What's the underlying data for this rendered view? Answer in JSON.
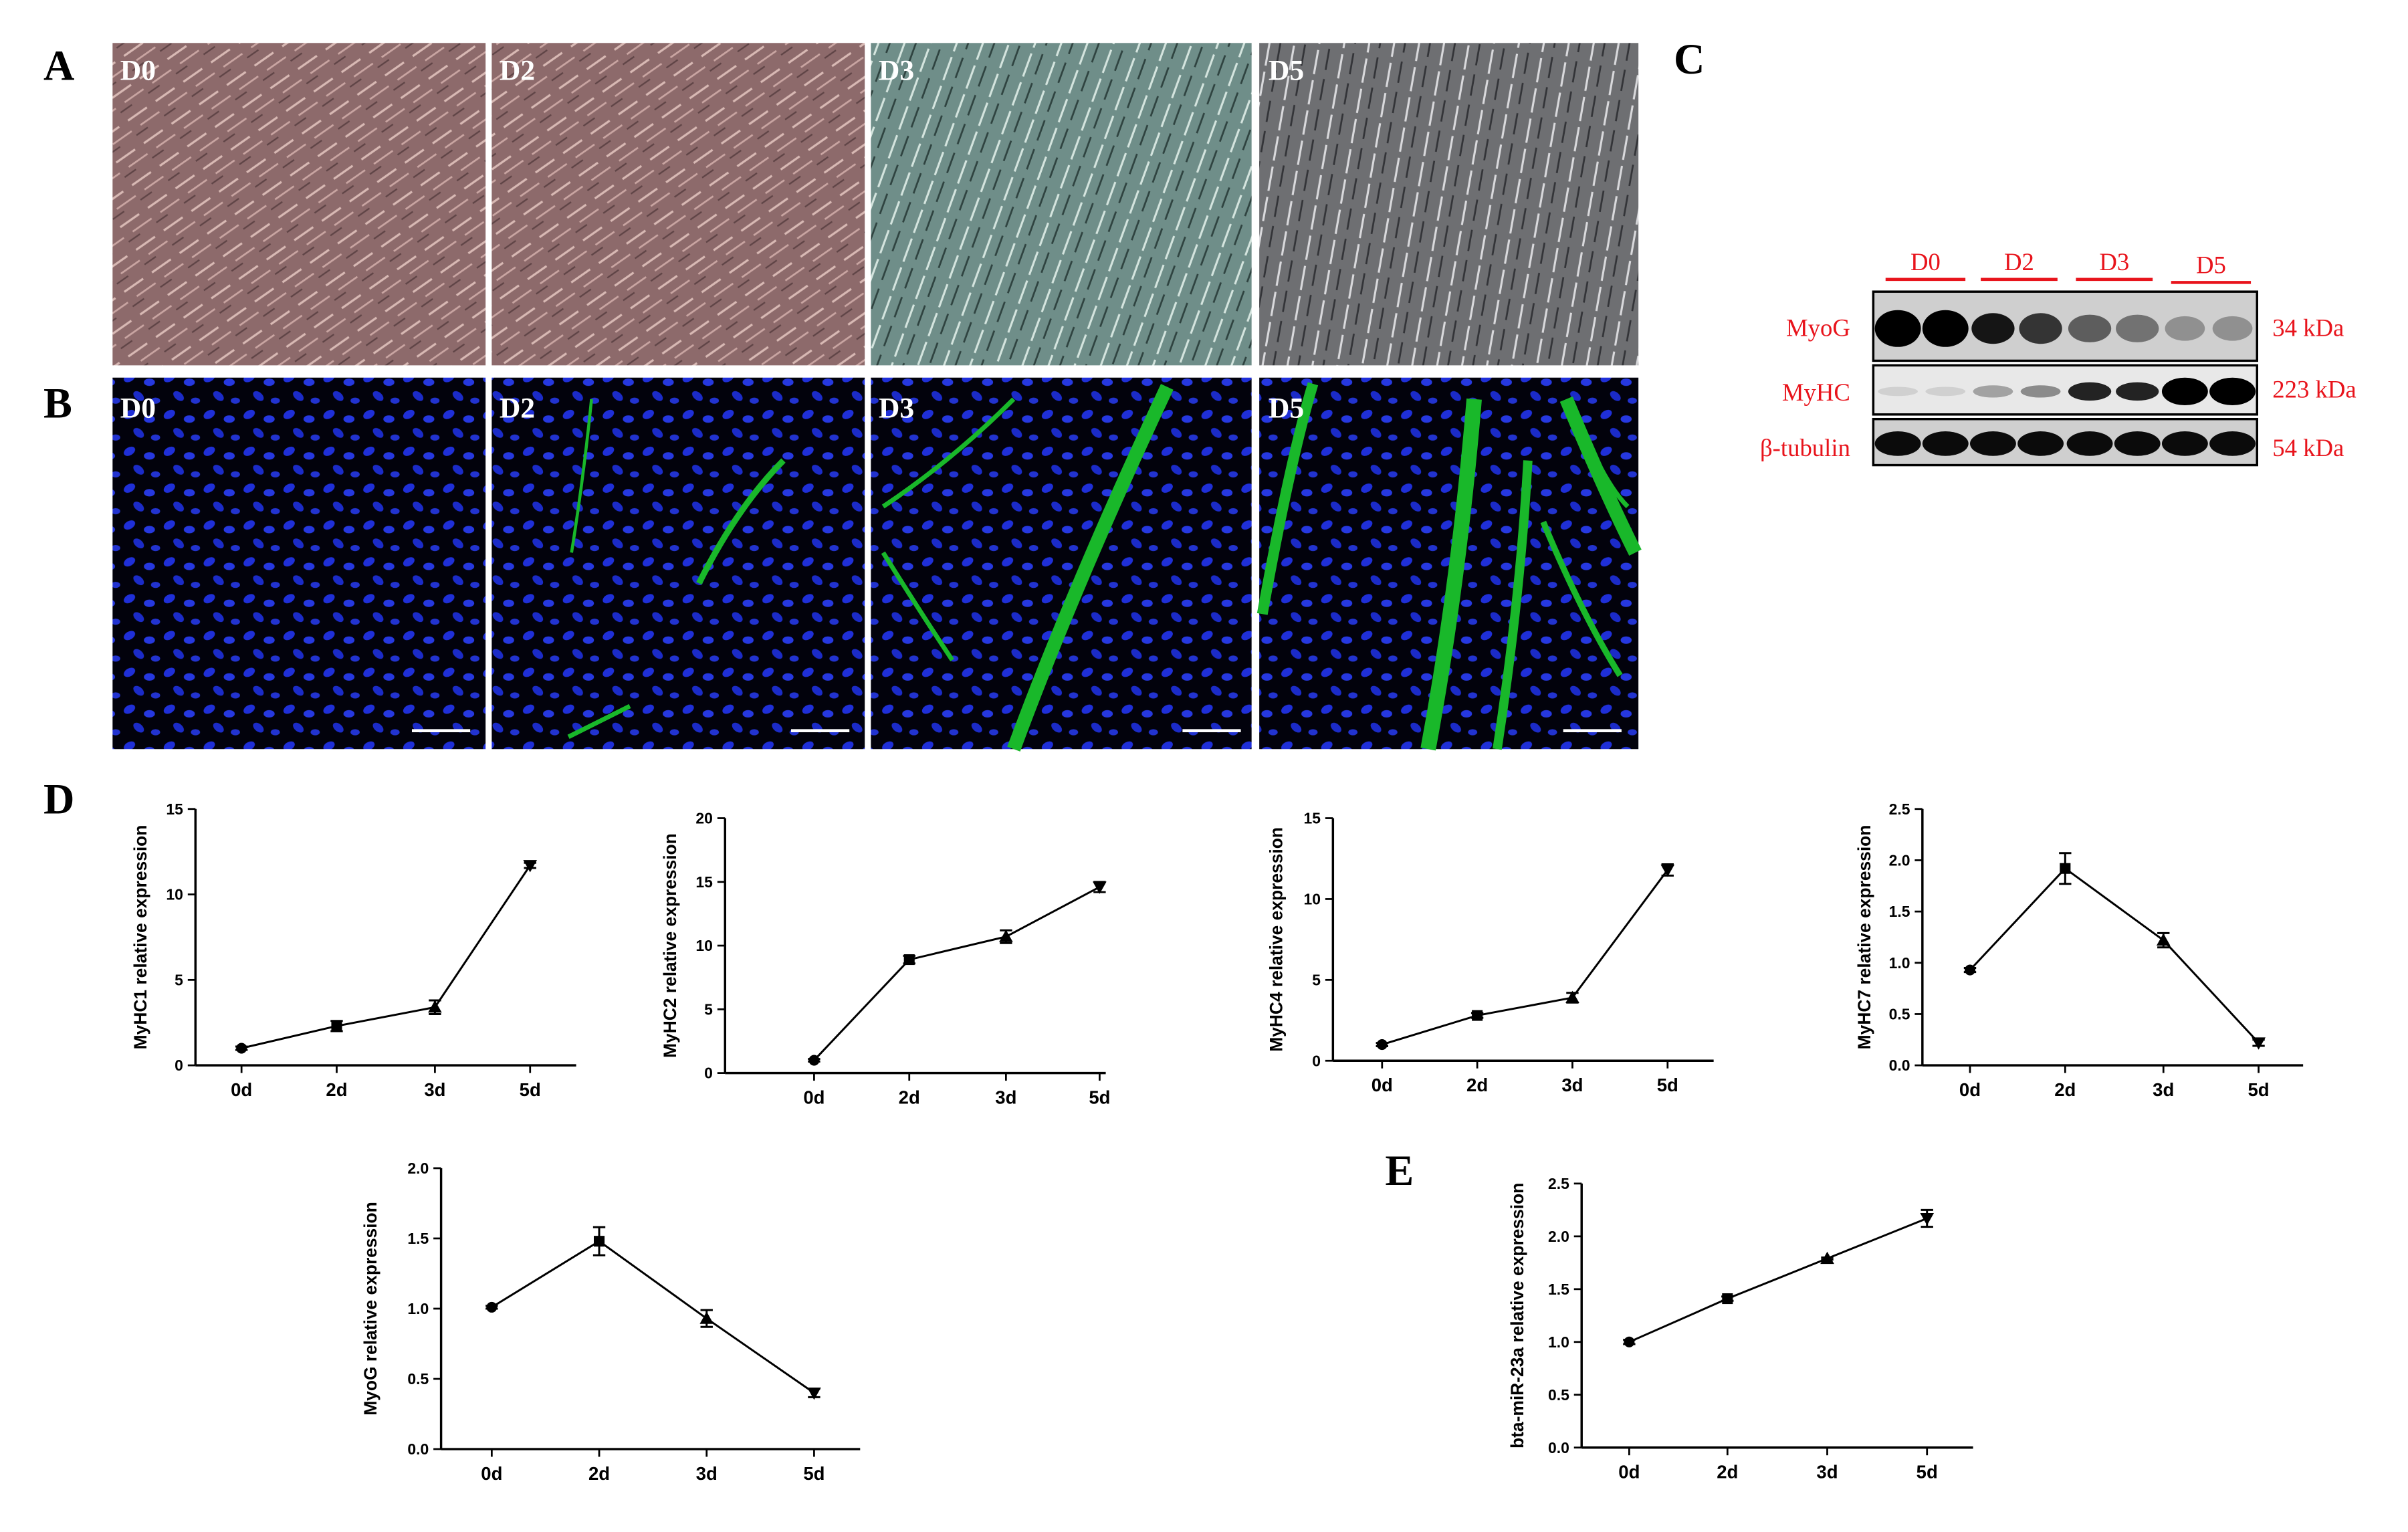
{
  "panel_letters": [
    "A",
    "B",
    "C",
    "D",
    "E"
  ],
  "panel_a": {
    "labels": [
      "D0",
      "D2",
      "D3",
      "D5"
    ]
  },
  "panel_b": {
    "labels": [
      "D0",
      "D2",
      "D3",
      "D5"
    ]
  },
  "panel_c": {
    "lanes": [
      "D0",
      "D2",
      "D3",
      "D5"
    ],
    "rows": [
      {
        "name": "MyoG",
        "size": "34 kDa"
      },
      {
        "name": "MyHC",
        "size": "223 kDa"
      },
      {
        "name": "β-tubulin",
        "size": "54 kDa"
      }
    ]
  },
  "chart_data": [
    {
      "type": "line",
      "y_label": "MyHC1 relative expression",
      "categories": [
        "0d",
        "2d",
        "3d",
        "5d"
      ],
      "values": [
        1,
        2.3,
        3.4,
        11.7
      ],
      "errors": [
        0.1,
        0.3,
        0.4,
        0.15
      ],
      "ylim": [
        0,
        15
      ],
      "yticks": [
        0,
        5,
        10,
        15
      ],
      "color": "#000000"
    },
    {
      "type": "line",
      "y_label": "MyHC2 relative expression",
      "categories": [
        "0d",
        "2d",
        "3d",
        "5d"
      ],
      "values": [
        1,
        8.9,
        10.7,
        14.6
      ],
      "errors": [
        0.1,
        0.3,
        0.5,
        0.4
      ],
      "ylim": [
        0,
        20
      ],
      "yticks": [
        0,
        5,
        10,
        15,
        20
      ],
      "color": "#000000"
    },
    {
      "type": "line",
      "y_label": "MyHC4 relative expression",
      "categories": [
        "0d",
        "2d",
        "3d",
        "5d"
      ],
      "values": [
        1,
        2.8,
        3.9,
        11.8
      ],
      "errors": [
        0.1,
        0.15,
        0.3,
        0.35
      ],
      "ylim": [
        0,
        15
      ],
      "yticks": [
        0,
        5,
        10,
        15
      ],
      "color": "#000000"
    },
    {
      "type": "line",
      "y_label": "MyHC7 relative expression",
      "categories": [
        "0d",
        "2d",
        "3d",
        "5d"
      ],
      "values": [
        0.93,
        1.92,
        1.22,
        0.22
      ],
      "errors": [
        0.02,
        0.15,
        0.07,
        0.03
      ],
      "ylim": [
        0,
        2.5
      ],
      "yticks": [
        {
          "value": 0,
          "label": "0.0"
        },
        0.5,
        {
          "value": 1,
          "label": "1.0"
        },
        1.5,
        {
          "value": 2,
          "label": "2.0"
        },
        2.5
      ],
      "color": "#000000"
    },
    {
      "type": "line",
      "y_label": "MyoG relative expression",
      "categories": [
        "0d",
        "2d",
        "3d",
        "5d"
      ],
      "values": [
        1.01,
        1.48,
        0.93,
        0.4
      ],
      "errors": [
        0.01,
        0.1,
        0.06,
        0.03
      ],
      "ylim": [
        0,
        2
      ],
      "yticks": [
        {
          "value": 0,
          "label": "0.0"
        },
        0.5,
        {
          "value": 1,
          "label": "1.0"
        },
        1.5,
        {
          "value": 2,
          "label": "2.0"
        }
      ],
      "color": "#000000"
    },
    {
      "type": "line",
      "y_label": "bta-miR-23a relative expression",
      "categories": [
        "0d",
        "2d",
        "3d",
        "5d"
      ],
      "values": [
        1,
        1.41,
        1.79,
        2.17
      ],
      "errors": [
        0.02,
        0.02,
        0.01,
        0.08
      ],
      "ylim": [
        0,
        2.5
      ],
      "yticks": [
        {
          "value": 0,
          "label": "0.0"
        },
        0.5,
        {
          "value": 1,
          "label": "1.0"
        },
        1.5,
        {
          "value": 2,
          "label": "2.0"
        },
        2.5
      ],
      "color": "#000000"
    }
  ]
}
